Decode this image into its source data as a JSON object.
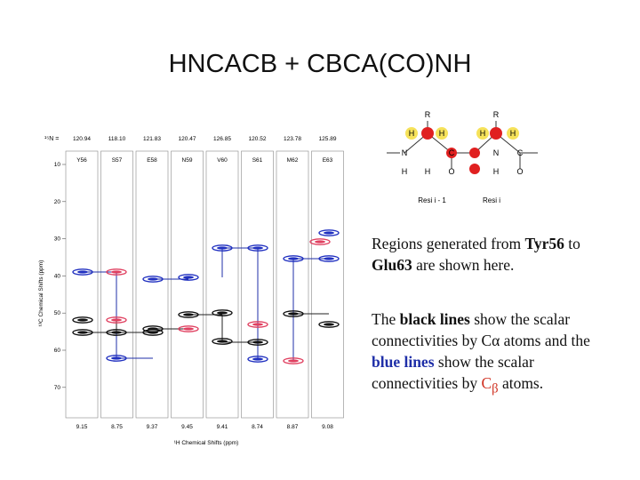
{
  "title": "HNCACB + CBCA(CO)NH",
  "figure": {
    "n_label": "¹⁵N =",
    "n_shifts": [
      "120.94",
      "118.10",
      "121.83",
      "120.47",
      "126.85",
      "120.52",
      "123.78",
      "125.89"
    ],
    "residues": [
      "Y56",
      "S57",
      "E58",
      "N59",
      "V60",
      "S61",
      "M62",
      "E63"
    ],
    "y_ticks": [
      "10",
      "20",
      "30",
      "40",
      "50",
      "60",
      "70"
    ],
    "y_axis_label": "¹³C Chemical Shifts (ppm)",
    "h_shifts": [
      "9.15",
      "8.75",
      "9.37",
      "9.45",
      "9.41",
      "8.74",
      "8.87",
      "9.08"
    ],
    "x_axis_label": "¹H Chemical Shifts (ppm)"
  },
  "structure": {
    "atoms": [
      "R",
      "R",
      "H",
      "H",
      "H",
      "H",
      "N",
      "H",
      "H",
      "C",
      "O",
      "N",
      "H",
      "C",
      "O"
    ],
    "residue_labels": [
      "Resi i - 1",
      "Resi i"
    ]
  },
  "text": {
    "paragraph1": [
      "Regions generated from ",
      "Tyr56",
      " to ",
      "Glu63",
      " are shown here."
    ],
    "paragraph2": [
      " The ",
      "black lines",
      " show the scalar connectivities by C",
      "α",
      " atoms and the ",
      "blue lines",
      " show the scalar connectivities by ",
      "C",
      "β",
      " atoms."
    ]
  }
}
